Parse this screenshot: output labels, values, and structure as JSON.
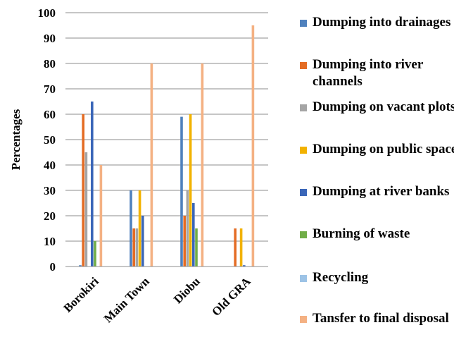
{
  "chart_data": {
    "type": "bar",
    "ylabel": "Percentages",
    "ylim": [
      0,
      100
    ],
    "yticks": [
      0,
      10,
      20,
      30,
      40,
      50,
      60,
      70,
      80,
      90,
      100
    ],
    "grid": true,
    "legend_position": "right",
    "categories": [
      "Borokiri",
      "Main Town",
      "Diobu",
      "Old GRA"
    ],
    "series": [
      {
        "name": "Dumping into drainages",
        "color": "#4F81BD",
        "values": [
          0.5,
          30,
          59,
          0
        ]
      },
      {
        "name": "Dumping into river channels",
        "color": "#E46C24",
        "values": [
          60,
          15,
          20,
          15
        ]
      },
      {
        "name": "Dumping on vacant plots",
        "color": "#A5A5A5",
        "values": [
          45,
          15,
          30,
          0
        ]
      },
      {
        "name": "Dumping on public spaces",
        "color": "#F2B200",
        "values": [
          0,
          30,
          60,
          15
        ]
      },
      {
        "name": "Dumping at river banks",
        "color": "#3A66B8",
        "values": [
          65,
          20,
          25,
          0.5
        ]
      },
      {
        "name": "Burning of waste",
        "color": "#70AD47",
        "values": [
          10,
          0,
          15,
          0
        ]
      },
      {
        "name": "Recycling",
        "color": "#9DC3E6",
        "values": [
          0,
          0,
          0,
          0
        ]
      },
      {
        "name": "Tansfer to final disposal",
        "color": "#F4B183",
        "values": [
          40,
          80,
          80,
          95
        ]
      }
    ]
  }
}
